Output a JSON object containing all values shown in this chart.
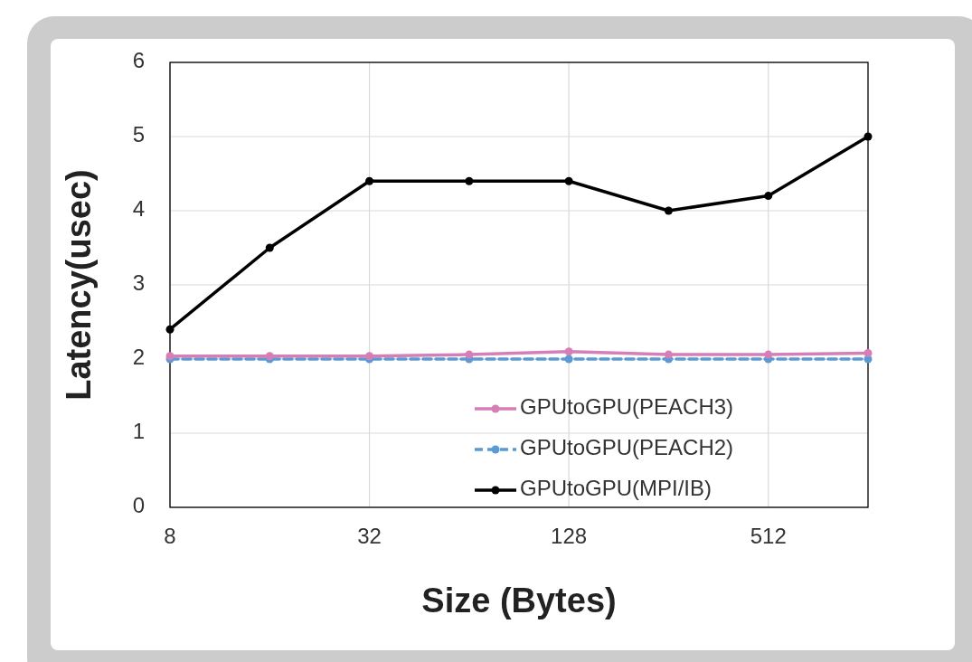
{
  "chart_data": {
    "type": "line",
    "xlabel": "Size (Bytes)",
    "ylabel": "Latency(usec)",
    "log": "x",
    "xlim": [
      8,
      1024
    ],
    "xticks": [
      8,
      32,
      128,
      512
    ],
    "ylim": [
      0,
      6
    ],
    "yticks": [
      0,
      1,
      2,
      3,
      4,
      5,
      6
    ],
    "x": [
      8,
      16,
      32,
      64,
      128,
      256,
      512,
      1024
    ],
    "grid": true,
    "legend": "bottom right",
    "marker": "circle",
    "series": [
      {
        "name": "GPUtoGPU(PEACH3)",
        "color": "#d67fb6",
        "line_style": "solid",
        "values": [
          2.04,
          2.04,
          2.04,
          2.06,
          2.1,
          2.06,
          2.06,
          2.08
        ]
      },
      {
        "name": "GPUtoGPU(PEACH2)",
        "color": "#5b9bd5",
        "line_style": "dashed",
        "values": [
          2.0,
          2.0,
          2.0,
          2.0,
          2.0,
          2.0,
          2.0,
          2.0
        ]
      },
      {
        "name": "GPUtoGPU(MPI/IB)",
        "color": "#000000",
        "line_style": "solid",
        "values": [
          2.4,
          3.5,
          4.4,
          4.4,
          4.4,
          4.0,
          4.2,
          5.0
        ]
      }
    ]
  }
}
